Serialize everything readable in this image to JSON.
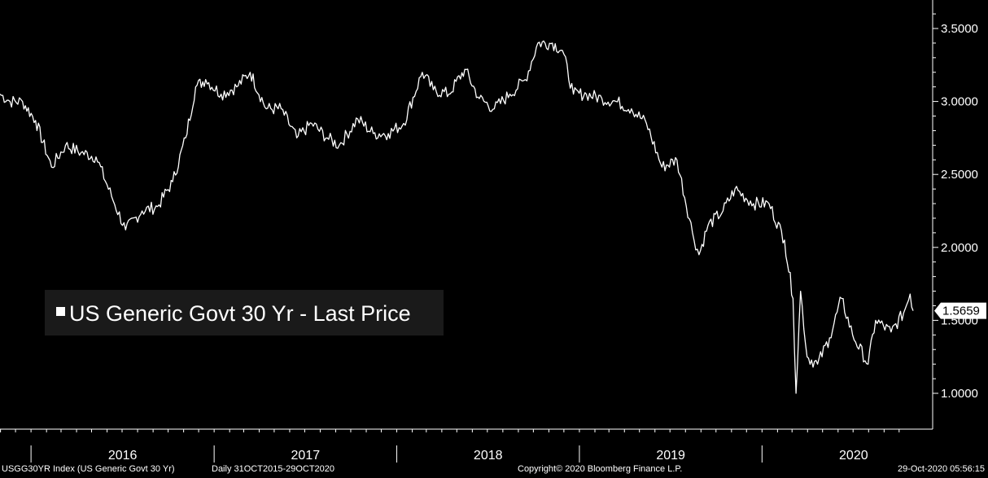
{
  "chart_data": {
    "type": "line",
    "series": [
      {
        "name": "US Generic Govt 30 Yr - Last Price",
        "color": "#ffffff",
        "x": [
          "2015-10-31",
          "2015-11-20",
          "2015-12-15",
          "2016-01-10",
          "2016-02-11",
          "2016-03-10",
          "2016-04-10",
          "2016-05-10",
          "2016-06-10",
          "2016-07-08",
          "2016-08-10",
          "2016-09-10",
          "2016-10-10",
          "2016-11-05",
          "2016-11-25",
          "2016-12-15",
          "2017-01-15",
          "2017-02-15",
          "2017-03-14",
          "2017-04-15",
          "2017-05-15",
          "2017-06-15",
          "2017-07-15",
          "2017-08-15",
          "2017-09-08",
          "2017-10-15",
          "2017-11-15",
          "2017-12-15",
          "2018-01-15",
          "2018-02-21",
          "2018-03-15",
          "2018-04-15",
          "2018-05-17",
          "2018-06-15",
          "2018-07-15",
          "2018-08-15",
          "2018-09-15",
          "2018-10-10",
          "2018-11-08",
          "2018-11-28",
          "2018-12-20",
          "2019-01-15",
          "2019-02-15",
          "2019-03-15",
          "2019-04-15",
          "2019-05-15",
          "2019-06-15",
          "2019-07-15",
          "2019-08-15",
          "2019-08-28",
          "2019-09-15",
          "2019-10-15",
          "2019-11-08",
          "2019-12-15",
          "2020-01-15",
          "2020-02-15",
          "2020-03-03",
          "2020-03-09",
          "2020-03-18",
          "2020-03-31",
          "2020-04-21",
          "2020-05-15",
          "2020-06-08",
          "2020-06-30",
          "2020-07-31",
          "2020-08-15",
          "2020-09-15",
          "2020-10-10",
          "2020-10-23",
          "2020-10-29"
        ],
        "y": [
          3.05,
          3.0,
          3.0,
          2.87,
          2.55,
          2.7,
          2.65,
          2.62,
          2.35,
          2.12,
          2.25,
          2.28,
          2.45,
          2.75,
          3.1,
          3.15,
          3.05,
          3.1,
          3.2,
          2.95,
          2.95,
          2.75,
          2.85,
          2.75,
          2.7,
          2.88,
          2.78,
          2.78,
          2.85,
          3.2,
          3.08,
          3.05,
          3.22,
          3.02,
          2.95,
          3.05,
          3.15,
          3.4,
          3.4,
          3.35,
          3.05,
          3.05,
          3.02,
          3.0,
          2.95,
          2.85,
          2.55,
          2.6,
          2.1,
          1.95,
          2.15,
          2.25,
          2.4,
          2.3,
          2.3,
          2.05,
          1.65,
          1.0,
          1.7,
          1.25,
          1.2,
          1.38,
          1.65,
          1.4,
          1.2,
          1.5,
          1.42,
          1.55,
          1.68,
          1.5659
        ]
      }
    ],
    "ylim": [
      0.8,
      3.7
    ],
    "yticks": [
      "3.5000",
      "3.0000",
      "2.5000",
      "2.0000",
      "1.5000",
      "1.0000"
    ],
    "xticks": [
      "2016",
      "2017",
      "2018",
      "2019",
      "2020"
    ],
    "last_value_label": "1.5659",
    "legend_position": "center-left",
    "grid": false
  },
  "footer": {
    "ticker": "USGG30YR Index (US Generic Govt 30 Yr)",
    "range": "Daily 31OCT2015-29OCT2020",
    "copyright": "Copyright© 2020 Bloomberg Finance L.P.",
    "timestamp": "29-Oct-2020 05:56:15"
  }
}
